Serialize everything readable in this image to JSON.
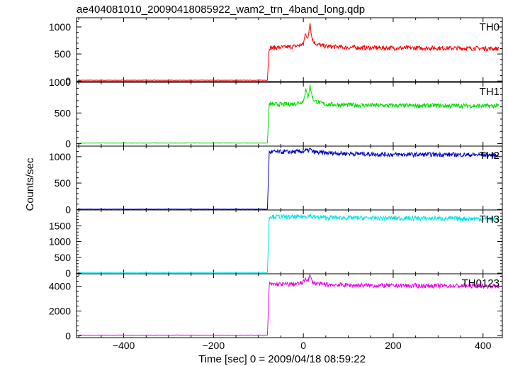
{
  "chart_data": {
    "type": "line",
    "title": "ae404081010_20090418085922_wam2_trn_4band_long.qdp",
    "xlabel": "Time [sec] 0 = 2009/04/18 08:59:22",
    "ylabel": "Counts/sec",
    "xlim": [
      -505,
      443
    ],
    "x_ticks": [
      -400,
      -200,
      0,
      200,
      400
    ],
    "panels": [
      {
        "name": "TH0",
        "color": "#ff0000",
        "ylim": [
          -10,
          1170
        ],
        "y_ticks": [
          0,
          500,
          1000
        ],
        "series": [
          {
            "x": [
              -500,
              -80,
              -78,
              -76,
              -70,
              -40,
              -20,
              0,
              5,
              10,
              15,
              18,
              22,
              30,
              50,
              100,
              200,
              300,
              430
            ],
            "y": [
              15,
              15,
              350,
              620,
              615,
              625,
              640,
              680,
              900,
              760,
              1100,
              850,
              730,
              680,
              640,
              620,
              610,
              610,
              600
            ]
          }
        ]
      },
      {
        "name": "TH1",
        "color": "#00dd00",
        "ylim": [
          -40,
          1000
        ],
        "y_ticks": [
          0,
          500,
          1000
        ],
        "series": [
          {
            "x": [
              -500,
              -80,
              -78,
              -76,
              -70,
              -40,
              -20,
              0,
              5,
              10,
              15,
              18,
              22,
              30,
              50,
              100,
              200,
              300,
              430
            ],
            "y": [
              10,
              10,
              350,
              650,
              640,
              640,
              650,
              690,
              880,
              760,
              940,
              820,
              720,
              680,
              640,
              630,
              620,
              620,
              615
            ]
          }
        ]
      },
      {
        "name": "TH2",
        "color": "#0000cc",
        "ylim": [
          -10,
          1200
        ],
        "y_ticks": [
          0,
          500,
          1000
        ],
        "series": [
          {
            "x": [
              -500,
              -80,
              -78,
              -76,
              -70,
              -40,
              -20,
              0,
              5,
              10,
              15,
              18,
              22,
              30,
              50,
              100,
              200,
              300,
              430
            ],
            "y": [
              5,
              5,
              550,
              1080,
              1090,
              1090,
              1090,
              1100,
              1120,
              1110,
              1150,
              1110,
              1090,
              1080,
              1070,
              1060,
              1040,
              1040,
              1030
            ]
          }
        ]
      },
      {
        "name": "TH3",
        "color": "#00e5e5",
        "ylim": [
          -20,
          2000
        ],
        "y_ticks": [
          0,
          500,
          1000,
          1500
        ],
        "series": [
          {
            "x": [
              -500,
              -80,
              -78,
              -76,
              -70,
              -40,
              -20,
              0,
              5,
              10,
              15,
              18,
              22,
              30,
              50,
              100,
              200,
              300,
              430
            ],
            "y": [
              20,
              20,
              900,
              1800,
              1790,
              1780,
              1770,
              1790,
              1810,
              1790,
              1830,
              1790,
              1780,
              1770,
              1760,
              1750,
              1740,
              1730,
              1720
            ]
          }
        ]
      },
      {
        "name": "TH0123",
        "color": "#ee00ee",
        "ylim": [
          -150,
          5000
        ],
        "y_ticks": [
          0,
          2000,
          4000
        ],
        "series": [
          {
            "x": [
              -500,
              -80,
              -78,
              -76,
              -70,
              -40,
              -20,
              0,
              5,
              10,
              15,
              18,
              22,
              30,
              50,
              100,
              200,
              300,
              430
            ],
            "y": [
              50,
              50,
              2000,
              4150,
              4150,
              4150,
              4170,
              4280,
              4650,
              4450,
              4850,
              4500,
              4300,
              4200,
              4130,
              4080,
              4040,
              4030,
              4010
            ]
          }
        ]
      }
    ]
  }
}
